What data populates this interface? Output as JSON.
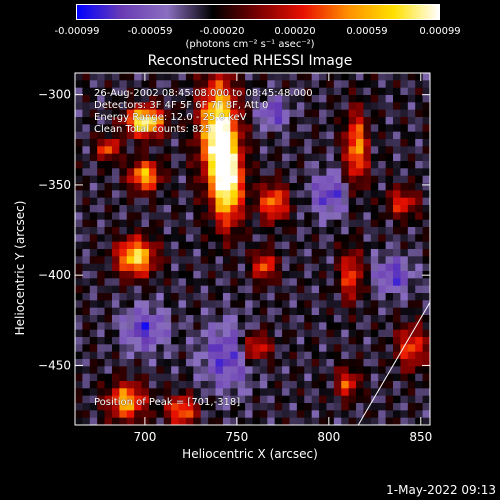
{
  "colorbar": {
    "ticks": [
      "-0.00099",
      "-0.00059",
      "-0.00020",
      "0.00020",
      "0.00059",
      "0.00099"
    ],
    "tick_values": [
      -0.00099,
      -0.00059,
      -0.0002,
      0.0002,
      0.00059,
      0.00099
    ],
    "range": [
      -0.00099,
      0.00099
    ],
    "label": "(photons cm⁻² s⁻¹ asec⁻²)"
  },
  "chart_data": {
    "type": "heatmap",
    "title": "Reconstructed RHESSI Image",
    "xlabel": "Heliocentric X (arcsec)",
    "ylabel": "Heliocentric Y (arcsec)",
    "xlim": [
      662,
      855
    ],
    "ylim": [
      -483,
      -288
    ],
    "x_ticks": [
      700,
      750,
      800,
      850
    ],
    "x_tick_labels": [
      "700",
      "750",
      "800",
      "850"
    ],
    "y_ticks": [
      -300,
      -350,
      -400,
      -450
    ],
    "y_tick_labels": [
      "−300",
      "−350",
      "−400",
      "−450"
    ],
    "colormap": [
      "#0000ff",
      "#6a3cb4",
      "#8a6fc0",
      "#000000",
      "#7a0000",
      "#e81000",
      "#ff9000",
      "#ffe000",
      "#ffffff"
    ],
    "peak": [
      701,
      -318
    ],
    "annotations": [
      "26-Aug-2002 08:45:08.000 to 08:45:48.000",
      "Detectors: 3F 4F 5F 6F 7F 8F, Att 0",
      "Energy Range: 12.0 - 25.0 keV",
      "Clean    Total counts: 825",
      "Position of Peak = [701,-318]"
    ],
    "limb_line": true
  },
  "timestamp": "1-May-2022 09:13"
}
